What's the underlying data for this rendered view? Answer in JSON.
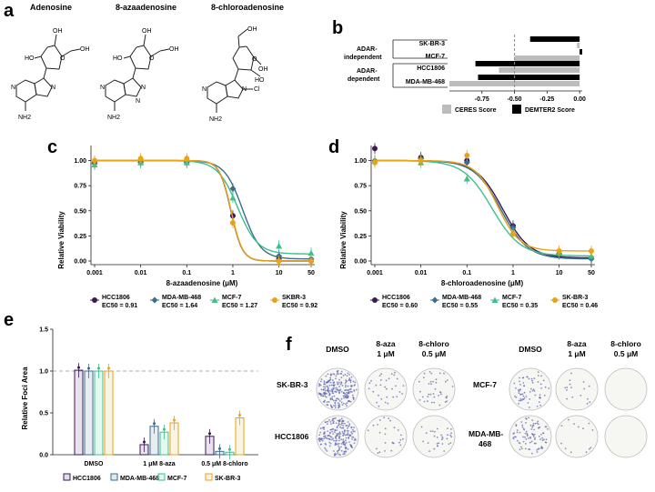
{
  "colors": {
    "HCC1806": "#3b1a55",
    "MDA-MB-468": "#3b6e8f",
    "MCF-7": "#3fbf8a",
    "SKBR-3": "#e8a317",
    "ceres": "#bcbcbc",
    "demter": "#000000",
    "dashed": "#5a9bd5"
  },
  "panelA": {
    "label": "a",
    "molecules": [
      "Adenosine",
      "8-azaadenosine",
      "8-chloroadenosine"
    ],
    "atoms": {
      "O": "O",
      "OH": "OH",
      "HO": "HO",
      "N": "N",
      "NH2": "NH2",
      "Cl": "Cl"
    }
  },
  "panelB": {
    "label": "b",
    "group1": [
      "ADAR-",
      "independent"
    ],
    "group2": [
      "ADAR-",
      "dependent"
    ],
    "chart_data": {
      "type": "bar",
      "categories": [
        "SK-BR-3",
        "MCF-7",
        "HCC1806",
        "MDA-MB-468"
      ],
      "series": [
        {
          "name": "CERES Score",
          "values": [
            -0.02,
            -0.5,
            -0.62,
            -1.0
          ]
        },
        {
          "name": "DEMTER2 Score",
          "values": [
            -0.38,
            0.02,
            -0.8,
            -0.78
          ]
        }
      ],
      "xticks": [
        "-0.75",
        "-0.50",
        "-0.25",
        "0.00"
      ],
      "xlim": [
        -1.0,
        0.02
      ],
      "reference_x": -0.5
    }
  },
  "panelC": {
    "label": "c",
    "chart_data": {
      "type": "line",
      "xlabel": "8-azaadenosine (μM)",
      "ylabel": "Relative Viability",
      "xscale": "log",
      "xticks": [
        "0.001",
        "0.01",
        "0.1",
        "1",
        "10",
        "50"
      ],
      "yticks": [
        "0.00",
        "0.25",
        "0.50",
        "0.75",
        "1.00"
      ],
      "ylim": [
        0,
        1.15
      ],
      "x": [
        0.001,
        0.01,
        0.1,
        1,
        10,
        50
      ],
      "series": [
        {
          "name": "HCC1806",
          "ec50_label": "EC50 = 0.91",
          "ec50": 0.91,
          "hill": 3.5,
          "bottom": 0.0,
          "values": [
            0.98,
            1.0,
            1.0,
            0.45,
            0.02,
            0.0
          ]
        },
        {
          "name": "MDA-MB-468",
          "ec50_label": "EC50 = 1.64",
          "ec50": 1.64,
          "hill": 2.2,
          "bottom": 0.02,
          "values": [
            0.97,
            0.98,
            0.98,
            0.72,
            0.05,
            0.02
          ]
        },
        {
          "name": "MCF-7",
          "ec50_label": "EC50 = 1.27",
          "ec50": 1.27,
          "hill": 2.0,
          "bottom": 0.07,
          "values": [
            0.96,
            0.98,
            0.98,
            0.63,
            0.15,
            0.08
          ]
        },
        {
          "name": "SKBR-3",
          "ec50_label": "EC50 = 0.92",
          "ec50": 0.92,
          "hill": 3.5,
          "bottom": 0.0,
          "values": [
            1.0,
            1.02,
            1.02,
            0.38,
            0.0,
            0.0
          ]
        }
      ]
    }
  },
  "panelD": {
    "label": "d",
    "chart_data": {
      "type": "line",
      "xlabel": "8-chloroadenosine (μM)",
      "ylabel": "Relative Viability",
      "xscale": "log",
      "xticks": [
        "0.001",
        "0.01",
        "0.1",
        "1",
        "10",
        "50"
      ],
      "yticks": [
        "0.00",
        "0.25",
        "0.50",
        "0.75",
        "1.00"
      ],
      "ylim": [
        0,
        1.15
      ],
      "x": [
        0.001,
        0.01,
        0.1,
        1,
        10,
        50
      ],
      "series": [
        {
          "name": "HCC1806",
          "ec50_label": "EC50 = 0.60",
          "ec50": 0.6,
          "hill": 1.5,
          "bottom": 0.03,
          "values": [
            1.12,
            1.03,
            1.0,
            0.35,
            0.07,
            0.03
          ]
        },
        {
          "name": "MDA-MB-468",
          "ec50_label": "EC50 = 0.55",
          "ec50": 0.55,
          "hill": 1.5,
          "bottom": 0.02,
          "values": [
            1.0,
            1.02,
            0.98,
            0.33,
            0.07,
            0.02
          ]
        },
        {
          "name": "MCF-7",
          "ec50_label": "EC50 = 0.35",
          "ec50": 0.35,
          "hill": 1.4,
          "bottom": 0.05,
          "values": [
            1.0,
            0.98,
            0.82,
            0.28,
            0.08,
            0.05
          ]
        },
        {
          "name": "SK-BR-3",
          "ec50_label": "EC50 = 0.46",
          "ec50": 0.46,
          "hill": 1.8,
          "bottom": 0.1,
          "values": [
            0.98,
            1.0,
            1.05,
            0.27,
            0.1,
            0.1
          ]
        }
      ]
    }
  },
  "panelE": {
    "label": "e",
    "chart_data": {
      "type": "bar",
      "ylabel": "Relative Foci Area",
      "categories": [
        "DMSO",
        "1 μM 8-aza",
        "0.5 μM 8-chloro"
      ],
      "yticks": [
        "0.0",
        "0.5",
        "1.0",
        "1.5"
      ],
      "ylim": [
        0,
        1.5
      ],
      "series": [
        {
          "name": "HCC1806",
          "values": [
            1.01,
            0.12,
            0.22
          ]
        },
        {
          "name": "MDA-MB-468",
          "values": [
            1.0,
            0.34,
            0.04
          ]
        },
        {
          "name": "MCF-7",
          "values": [
            1.0,
            0.27,
            0.03
          ]
        },
        {
          "name": "SK-BR-3",
          "values": [
            1.0,
            0.38,
            0.44
          ]
        }
      ]
    }
  },
  "panelF": {
    "label": "f",
    "left_cols": [
      "DMSO",
      "8-aza",
      "1 μM",
      "8-chloro",
      "0.5 μM"
    ],
    "right_cols": [
      "DMSO",
      "8-aza",
      "1 μM",
      "8-chloro",
      "0.5 μM"
    ],
    "rows_left": [
      "SK-BR-3",
      "HCC1806"
    ],
    "rows_right": [
      "MCF-7",
      "MDA-MB-",
      "468"
    ]
  }
}
